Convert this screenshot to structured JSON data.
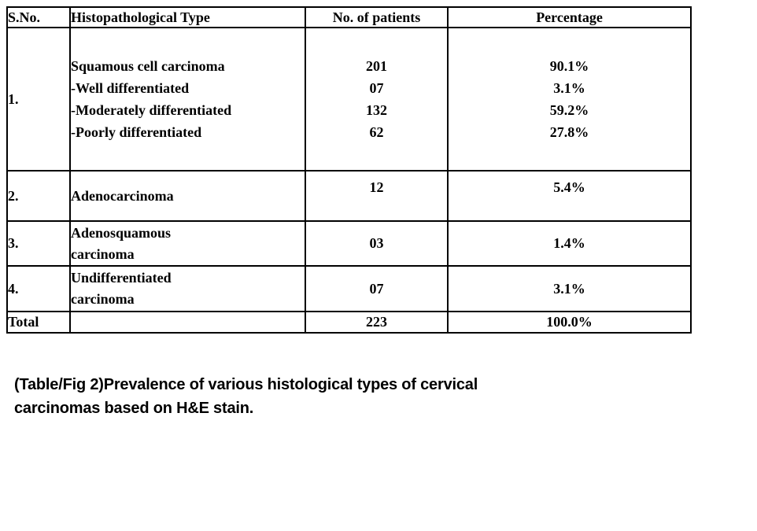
{
  "table": {
    "headers": [
      "S.No.",
      "Histopathological Type",
      "No. of patients",
      "Percentage"
    ],
    "rows": [
      {
        "sno": "1.",
        "types": [
          "Squamous cell carcinoma",
          "-Well differentiated",
          "-Moderately differentiated",
          "-Poorly differentiated"
        ],
        "patients": [
          "201",
          "07",
          "132",
          "62"
        ],
        "percentages": [
          "90.1%",
          "3.1%",
          "59.2%",
          "27.8%"
        ]
      },
      {
        "sno": "2.",
        "types": [
          "Adenocarcinoma"
        ],
        "patients": [
          "12"
        ],
        "percentages": [
          "5.4%"
        ]
      },
      {
        "sno": "3.",
        "types": [
          "Adenosquamous",
          "carcinoma"
        ],
        "patients": [
          "03"
        ],
        "percentages": [
          "1.4%"
        ]
      },
      {
        "sno": "4.",
        "types": [
          "Undifferentiated",
          "carcinoma"
        ],
        "patients": [
          "07"
        ],
        "percentages": [
          "3.1%"
        ]
      }
    ],
    "total": {
      "label": "Total",
      "patients": "223",
      "percentage": "100.0%"
    }
  },
  "caption": {
    "line1": "(Table/Fig 2)Prevalence of various histological types of cervical",
    "line2": "carcinomas based on H&E stain."
  }
}
